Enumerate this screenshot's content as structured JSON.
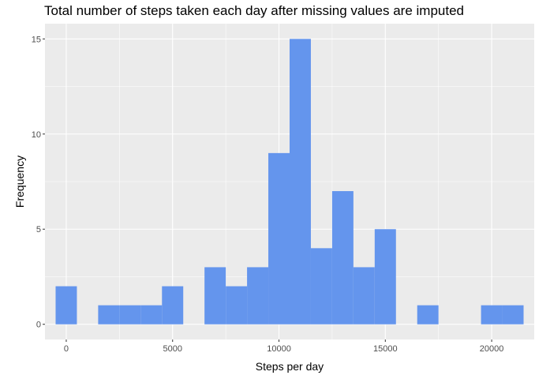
{
  "chart_data": {
    "type": "bar",
    "title": "Total number of steps taken each day after missing values are imputed",
    "xlabel": "Steps per day",
    "ylabel": "Frequency",
    "bin_width": 1000,
    "bins": [
      {
        "x_start": -500,
        "x_end": 500,
        "count": 2
      },
      {
        "x_start": 500,
        "x_end": 1500,
        "count": 0
      },
      {
        "x_start": 1500,
        "x_end": 2500,
        "count": 1
      },
      {
        "x_start": 2500,
        "x_end": 3500,
        "count": 1
      },
      {
        "x_start": 3500,
        "x_end": 4500,
        "count": 1
      },
      {
        "x_start": 4500,
        "x_end": 5500,
        "count": 2
      },
      {
        "x_start": 5500,
        "x_end": 6500,
        "count": 0
      },
      {
        "x_start": 6500,
        "x_end": 7500,
        "count": 3
      },
      {
        "x_start": 7500,
        "x_end": 8500,
        "count": 2
      },
      {
        "x_start": 8500,
        "x_end": 9500,
        "count": 3
      },
      {
        "x_start": 9500,
        "x_end": 10500,
        "count": 9
      },
      {
        "x_start": 10500,
        "x_end": 11500,
        "count": 15
      },
      {
        "x_start": 11500,
        "x_end": 12500,
        "count": 4
      },
      {
        "x_start": 12500,
        "x_end": 13500,
        "count": 7
      },
      {
        "x_start": 13500,
        "x_end": 14500,
        "count": 3
      },
      {
        "x_start": 14500,
        "x_end": 15500,
        "count": 5
      },
      {
        "x_start": 15500,
        "x_end": 16500,
        "count": 0
      },
      {
        "x_start": 16500,
        "x_end": 17500,
        "count": 1
      },
      {
        "x_start": 17500,
        "x_end": 18500,
        "count": 0
      },
      {
        "x_start": 18500,
        "x_end": 19500,
        "count": 0
      },
      {
        "x_start": 19500,
        "x_end": 20500,
        "count": 1
      },
      {
        "x_start": 20500,
        "x_end": 21500,
        "count": 1
      }
    ],
    "xlim": [
      -1000,
      22000
    ],
    "ylim": [
      -0.8,
      15.8
    ],
    "x_ticks": [
      0,
      5000,
      10000,
      15000,
      20000
    ],
    "x_tick_labels": [
      "0",
      "5000",
      "10000",
      "15000",
      "20000"
    ],
    "y_ticks": [
      0,
      5,
      10,
      15
    ],
    "y_tick_labels": [
      "0",
      "5",
      "10",
      "15"
    ],
    "grid": true,
    "colors": {
      "bar": "#6495ED",
      "panel": "#EBEBEB",
      "grid": "#FFFFFF"
    }
  }
}
